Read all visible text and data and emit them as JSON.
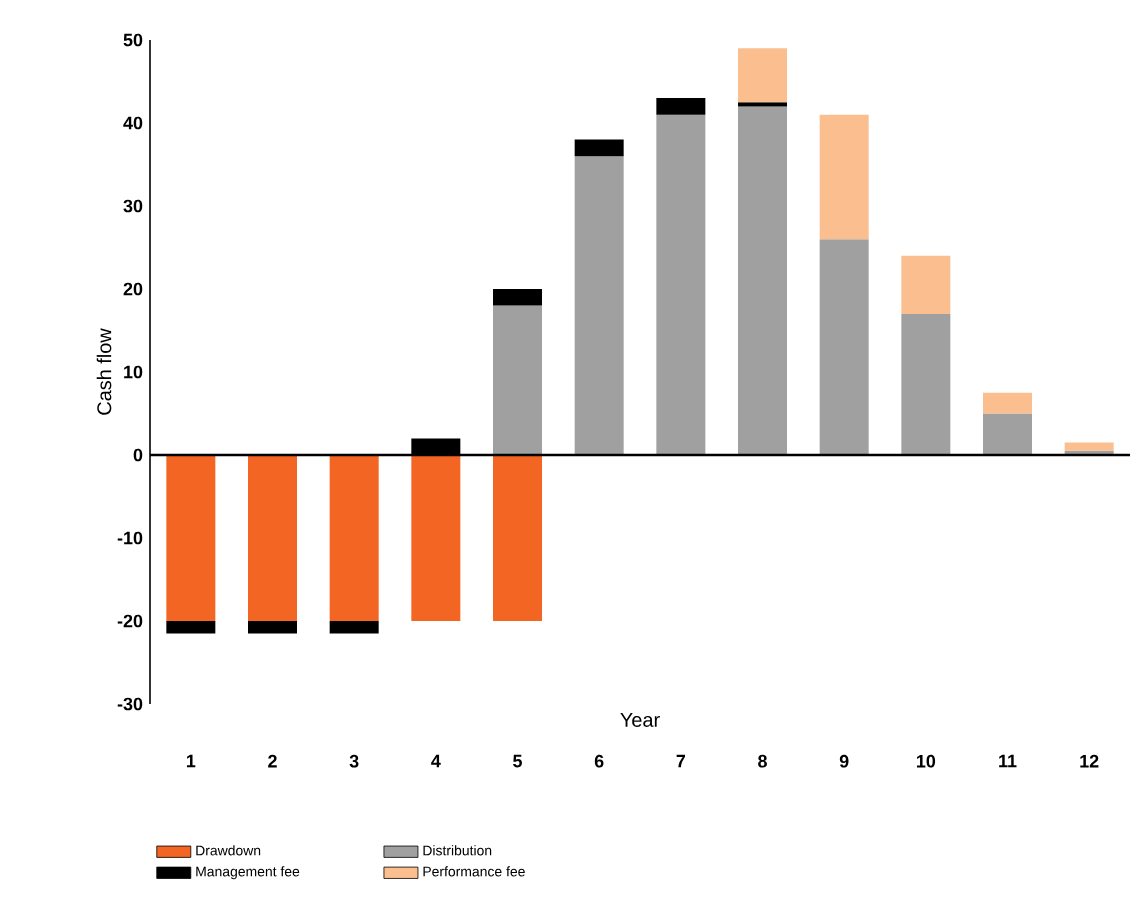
{
  "chart_data": {
    "type": "bar",
    "stacked": true,
    "ylabel": "Cash flow",
    "xlabel": "Year",
    "categories": [
      "1",
      "2",
      "3",
      "4",
      "5",
      "6",
      "7",
      "8",
      "9",
      "10",
      "11",
      "12"
    ],
    "series": [
      {
        "name": "Drawdown",
        "color": "#f26522",
        "values": [
          -20,
          -20,
          -20,
          -20,
          -20,
          null,
          null,
          null,
          null,
          null,
          null,
          null
        ]
      },
      {
        "name": "Distribution",
        "color": "#a0a0a0",
        "values": [
          null,
          null,
          null,
          null,
          18,
          36,
          41,
          42,
          26,
          17,
          5,
          0.5
        ]
      },
      {
        "name": "Management fee",
        "color": "#000000",
        "values": [
          -1.5,
          -1.5,
          -1.5,
          2,
          2,
          2,
          2,
          0.5,
          null,
          null,
          null,
          null
        ]
      },
      {
        "name": "Performance fee",
        "color": "#fbbf8f",
        "values": [
          null,
          null,
          null,
          null,
          null,
          null,
          null,
          6.5,
          15,
          7,
          2.5,
          1
        ]
      }
    ],
    "ylim": [
      -30,
      50
    ],
    "yticks": [
      -30,
      -20,
      -10,
      0,
      10,
      20,
      30,
      40,
      50
    ],
    "legend": "bottom"
  }
}
